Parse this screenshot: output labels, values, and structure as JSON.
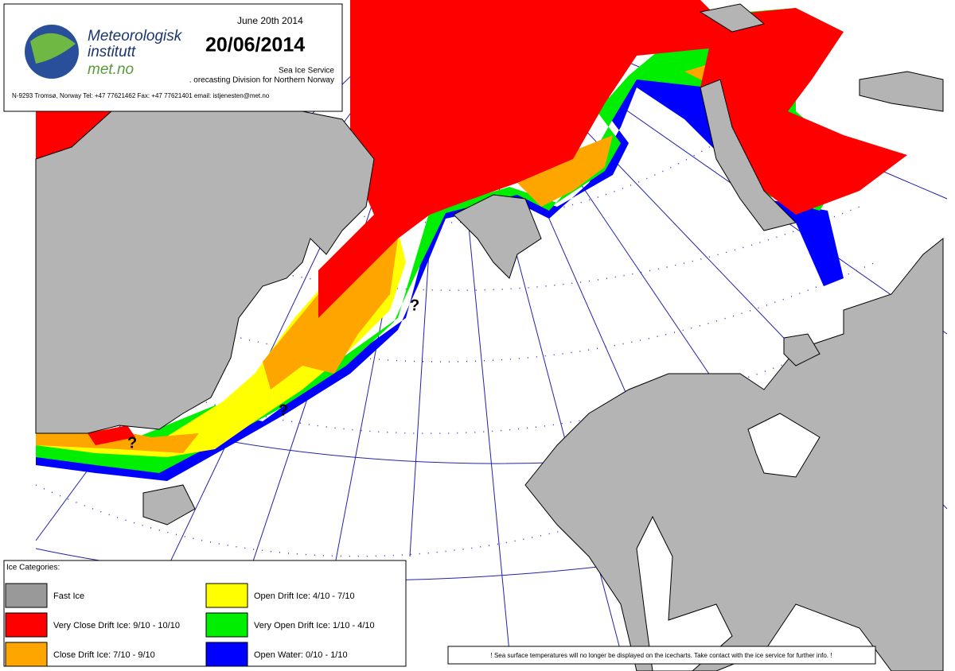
{
  "header": {
    "date_text": "June 20th 2014",
    "date": "20/06/2014",
    "org_line1": "Meteorologisk",
    "org_line2": "institutt",
    "org_web": "met.no",
    "service": "Sea Ice Service",
    "division": ". orecasting Division for Northern Norway",
    "contact": "N-9293 Tromsø, Norway   Tel: +47 77621462   Fax: +47 77621401   email: istjenesten@met.no"
  },
  "map": {
    "annotations": [
      "?",
      "?",
      "?"
    ]
  },
  "legend": {
    "title": "Ice Categories:",
    "items": [
      {
        "label": "Fast Ice",
        "color": "#999999"
      },
      {
        "label": "Very Close Drift Ice:  9/10 - 10/10",
        "color": "#ff0000"
      },
      {
        "label": "Close Drift Ice:  7/10 - 9/10",
        "color": "#ffa500"
      },
      {
        "label": "Open Drift Ice:  4/10 - 7/10",
        "color": "#ffff00"
      },
      {
        "label": "Very Open Drift Ice:  1/10 - 4/10",
        "color": "#00ee00"
      },
      {
        "label": "Open Water:  0/10 - 1/10",
        "color": "#0000ff"
      }
    ]
  },
  "note": "!   Sea surface temperatures will no longer be displayed on the icecharts. Take contact with the ice service for further info.   !"
}
